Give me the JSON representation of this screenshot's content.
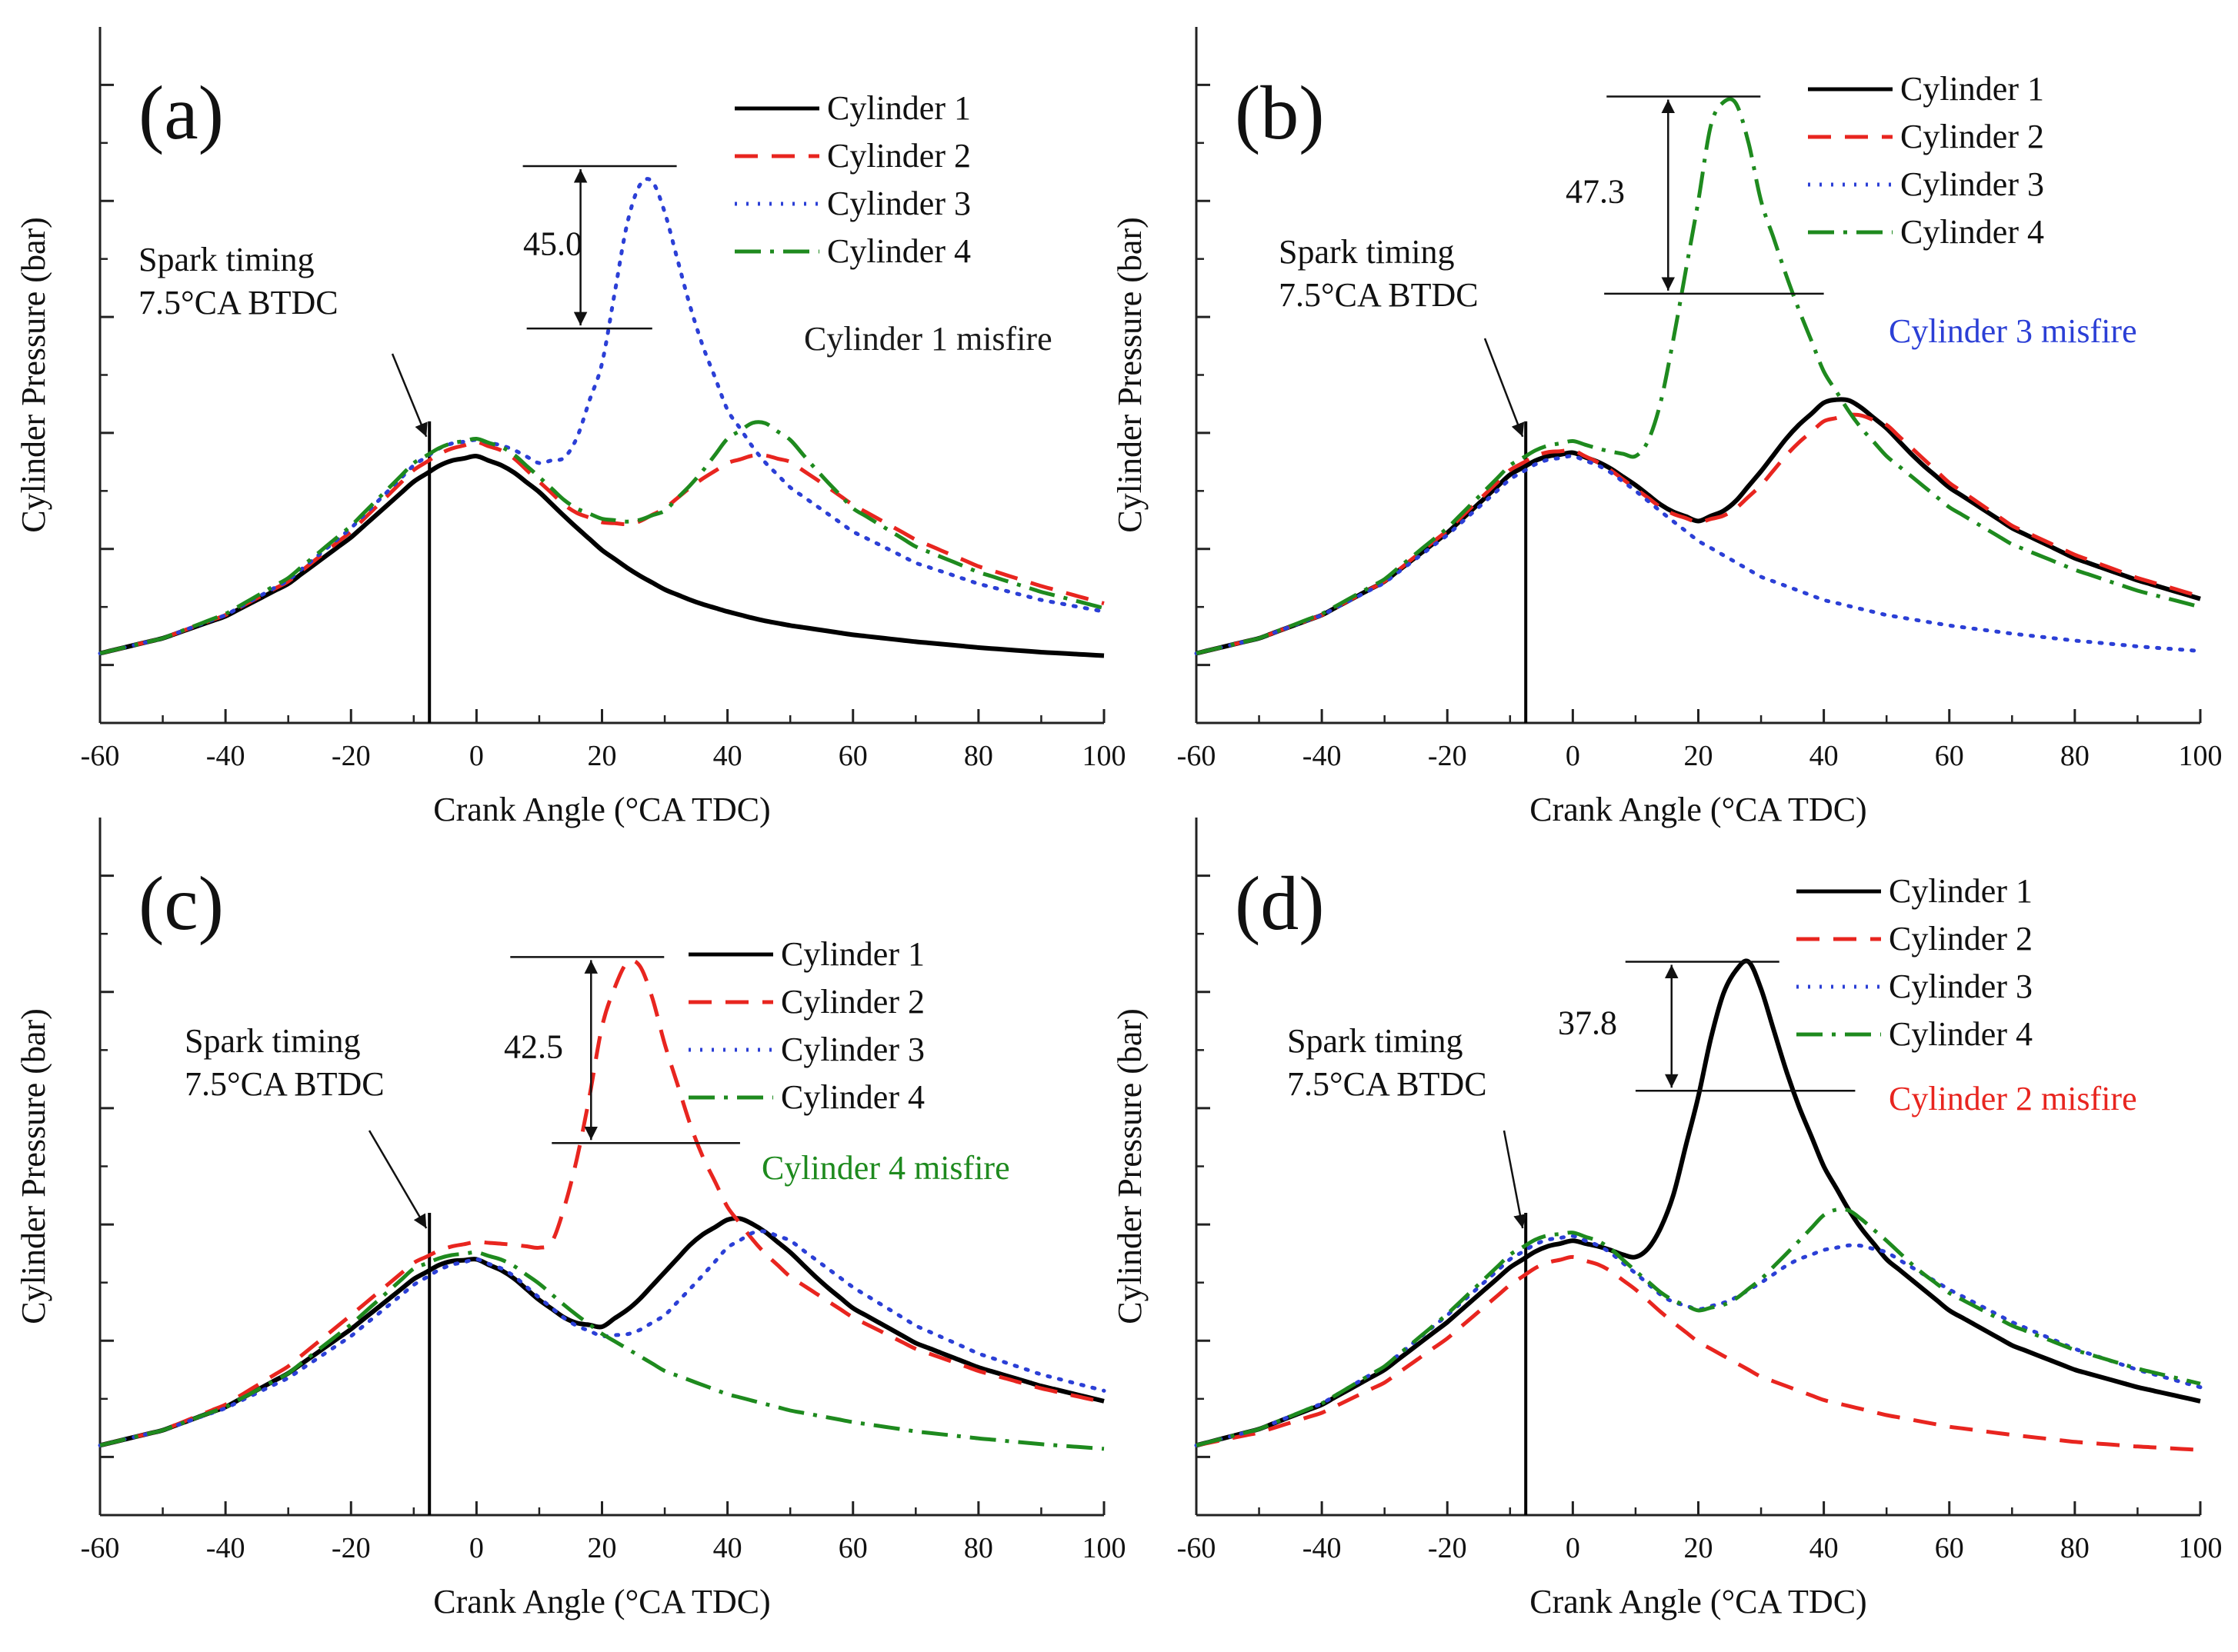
{
  "chart_data": [
    {
      "panel_label": "(a)",
      "type": "line",
      "xlabel": "Crank Angle (°CA TDC)",
      "ylabel": "Cylinder Pressure (bar)",
      "xlim": [
        -60,
        100
      ],
      "xticks": [
        "-60",
        "-40",
        "-20",
        "0",
        "20",
        "40",
        "60",
        "80",
        "100"
      ],
      "ylim": [
        -5,
        55
      ],
      "y_tick_labels_shown": false,
      "grid": false,
      "legend_position": "top-right",
      "spark_label": [
        "Spark timing",
        "7.5°CA BTDC"
      ],
      "spark_x": -7.5,
      "peak_difference": "45.0",
      "misfire_label": "Cylinder 1 misfire",
      "misfire_color": "#1a1a1a",
      "ref_x": [
        8,
        28
      ],
      "series": [
        {
          "name": "Cylinder 1",
          "color": "#000000",
          "style": "solid",
          "x": [
            -60,
            -50,
            -40,
            -30,
            -20,
            -10,
            -5,
            0,
            5,
            10,
            15,
            20,
            25,
            30,
            35,
            40,
            45,
            50,
            55,
            60,
            70,
            80,
            90,
            100
          ],
          "y": [
            1.0,
            2.3,
            4.2,
            7.0,
            11.0,
            15.8,
            17.5,
            18.0,
            17.0,
            14.9,
            12.3,
            9.9,
            8.0,
            6.5,
            5.4,
            4.6,
            3.9,
            3.4,
            3.0,
            2.6,
            2.0,
            1.5,
            1.1,
            0.8
          ]
        },
        {
          "name": "Cylinder 2",
          "color": "#e8251f",
          "style": "dashed",
          "x": [
            -60,
            -50,
            -40,
            -30,
            -20,
            -10,
            -5,
            0,
            5,
            10,
            15,
            20,
            25,
            30,
            35,
            40,
            45,
            50,
            55,
            60,
            70,
            80,
            90,
            100
          ],
          "y": [
            1.0,
            2.3,
            4.3,
            7.2,
            11.5,
            16.8,
            18.5,
            19.2,
            18.3,
            15.8,
            13.3,
            12.3,
            12.1,
            13.5,
            15.7,
            17.4,
            18.2,
            17.5,
            15.7,
            13.8,
            10.8,
            8.5,
            6.8,
            5.3
          ]
        },
        {
          "name": "Cylinder 3",
          "color": "#2b3fd6",
          "style": "dotted",
          "x": [
            -60,
            -50,
            -40,
            -30,
            -20,
            -10,
            -5,
            0,
            5,
            10,
            15,
            20,
            24,
            27,
            30,
            35,
            40,
            45,
            50,
            60,
            70,
            80,
            90,
            100
          ],
          "y": [
            1.0,
            2.3,
            4.3,
            7.3,
            11.8,
            17.2,
            19.0,
            19.4,
            18.8,
            17.4,
            18.0,
            26.0,
            38.0,
            43.0,
            39.0,
            29.0,
            22.0,
            18.0,
            15.3,
            11.5,
            8.8,
            7.0,
            5.6,
            4.6
          ]
        },
        {
          "name": "Cylinder 4",
          "color": "#1e8a1e",
          "style": "dashdot",
          "x": [
            -60,
            -50,
            -40,
            -30,
            -20,
            -10,
            -5,
            0,
            5,
            10,
            15,
            20,
            25,
            30,
            35,
            40,
            45,
            50,
            55,
            60,
            70,
            80,
            90,
            100
          ],
          "y": [
            1.0,
            2.3,
            4.4,
            7.5,
            12.0,
            17.4,
            19.0,
            19.5,
            18.6,
            16.2,
            13.7,
            12.6,
            12.3,
            13.3,
            16.0,
            19.5,
            21.2,
            19.4,
            16.3,
            13.5,
            10.2,
            8.0,
            6.3,
            4.9
          ]
        }
      ]
    },
    {
      "panel_label": "(b)",
      "type": "line",
      "xlabel": "Crank Angle (°CA TDC)",
      "ylabel": "Cylinder Pressure (bar)",
      "xlim": [
        -60,
        100
      ],
      "xticks": [
        "-60",
        "-40",
        "-20",
        "0",
        "20",
        "40",
        "60",
        "80",
        "100"
      ],
      "ylim": [
        -5,
        55
      ],
      "y_tick_labels_shown": false,
      "grid": false,
      "legend_position": "top-right",
      "spark_label": [
        "Spark timing",
        "7.5°CA BTDC"
      ],
      "spark_x": -7.5,
      "peak_difference": "47.3",
      "misfire_label": "Cylinder 3 misfire",
      "misfire_color": "#2b3fd6",
      "ref_x": [
        5,
        40
      ],
      "series": [
        {
          "name": "Cylinder 1",
          "color": "#000000",
          "style": "solid",
          "x": [
            -60,
            -50,
            -40,
            -30,
            -20,
            -10,
            -5,
            0,
            5,
            10,
            15,
            20,
            25,
            30,
            35,
            40,
            43,
            45,
            50,
            55,
            60,
            70,
            80,
            90,
            100
          ],
          "y": [
            1.0,
            2.3,
            4.3,
            7.2,
            11.4,
            16.4,
            17.9,
            18.3,
            17.3,
            15.5,
            13.4,
            12.4,
            13.5,
            16.7,
            20.2,
            22.6,
            23.0,
            22.6,
            20.4,
            17.6,
            15.3,
            11.8,
            9.2,
            7.3,
            5.7
          ]
        },
        {
          "name": "Cylinder 2",
          "color": "#e8251f",
          "style": "dashed",
          "x": [
            -60,
            -50,
            -40,
            -30,
            -20,
            -10,
            -5,
            0,
            5,
            10,
            15,
            20,
            25,
            30,
            35,
            40,
            45,
            50,
            55,
            60,
            70,
            80,
            90,
            100
          ],
          "y": [
            1.0,
            2.3,
            4.3,
            7.2,
            11.6,
            16.8,
            18.3,
            18.5,
            17.2,
            15.2,
            13.2,
            12.3,
            13.0,
            15.5,
            18.7,
            21.0,
            21.7,
            20.7,
            18.2,
            15.7,
            12.0,
            9.5,
            7.5,
            5.9
          ]
        },
        {
          "name": "Cylinder 3",
          "color": "#2b3fd6",
          "style": "dotted",
          "x": [
            -60,
            -50,
            -40,
            -30,
            -20,
            -10,
            -5,
            0,
            5,
            10,
            15,
            20,
            30,
            40,
            50,
            60,
            70,
            80,
            90,
            100
          ],
          "y": [
            1.0,
            2.3,
            4.3,
            7.1,
            11.2,
            16.0,
            17.6,
            18.0,
            17.0,
            15.0,
            12.8,
            10.7,
            7.6,
            5.6,
            4.3,
            3.4,
            2.7,
            2.1,
            1.6,
            1.2
          ]
        },
        {
          "name": "Cylinder 4",
          "color": "#1e8a1e",
          "style": "dashdot",
          "x": [
            -60,
            -50,
            -40,
            -30,
            -20,
            -10,
            -5,
            0,
            5,
            10,
            13,
            16,
            20,
            22,
            24,
            25,
            26,
            28,
            30,
            35,
            40,
            45,
            50,
            60,
            70,
            80,
            90,
            100
          ],
          "y": [
            1.0,
            2.3,
            4.4,
            7.4,
            11.8,
            17.2,
            18.8,
            19.3,
            18.5,
            18.0,
            20.0,
            28.0,
            40.0,
            46.5,
            48.5,
            49.0,
            48.4,
            45.0,
            40.0,
            32.0,
            25.3,
            21.0,
            18.0,
            13.6,
            10.4,
            8.2,
            6.4,
            5.0
          ]
        }
      ]
    },
    {
      "panel_label": "(c)",
      "type": "line",
      "xlabel": "Crank Angle (°CA TDC)",
      "ylabel": "Cylinder Pressure (bar)",
      "xlim": [
        -60,
        100
      ],
      "xticks": [
        "-60",
        "-40",
        "-20",
        "0",
        "20",
        "40",
        "60",
        "80",
        "100"
      ],
      "ylim": [
        -5,
        55
      ],
      "y_tick_labels_shown": false,
      "grid": false,
      "legend_position": "right",
      "spark_label": [
        "Spark timing",
        "7.5°CA BTDC"
      ],
      "spark_x": -7.5,
      "peak_difference": "42.5",
      "misfire_label": "Cylinder 4 misfire",
      "misfire_color": "#1e8a1e",
      "ref_x": [
        12,
        42
      ],
      "series": [
        {
          "name": "Cylinder 1",
          "color": "#000000",
          "style": "solid",
          "x": [
            -60,
            -50,
            -40,
            -30,
            -20,
            -10,
            -5,
            0,
            5,
            10,
            15,
            20,
            25,
            30,
            35,
            40,
            42,
            45,
            50,
            55,
            60,
            70,
            80,
            90,
            100
          ],
          "y": [
            1.0,
            2.3,
            4.3,
            7.2,
            11.0,
            15.3,
            16.8,
            17.0,
            15.8,
            13.5,
            11.6,
            11.2,
            13.0,
            15.9,
            18.8,
            20.4,
            20.5,
            19.8,
            17.6,
            15.0,
            12.8,
            9.8,
            7.7,
            6.1,
            4.8
          ]
        },
        {
          "name": "Cylinder 2",
          "color": "#e8251f",
          "style": "dashed",
          "x": [
            -60,
            -50,
            -40,
            -30,
            -20,
            -10,
            -5,
            0,
            5,
            10,
            12,
            15,
            18,
            20,
            23,
            25,
            27,
            30,
            35,
            40,
            45,
            50,
            60,
            70,
            80,
            90,
            100
          ],
          "y": [
            1.0,
            2.3,
            4.5,
            7.8,
            12.2,
            16.7,
            18.0,
            18.5,
            18.3,
            18.0,
            18.5,
            23.0,
            31.0,
            37.0,
            42.0,
            43.0,
            41.5,
            35.5,
            27.0,
            21.5,
            18.0,
            15.5,
            12.0,
            9.3,
            7.4,
            5.9,
            4.7
          ]
        },
        {
          "name": "Cylinder 3",
          "color": "#2b3fd6",
          "style": "dotted",
          "x": [
            -60,
            -50,
            -40,
            -30,
            -20,
            -10,
            -5,
            0,
            5,
            10,
            15,
            20,
            25,
            30,
            35,
            40,
            45,
            50,
            60,
            70,
            80,
            90,
            100
          ],
          "y": [
            1.0,
            2.3,
            4.2,
            6.8,
            10.4,
            14.8,
            16.4,
            17.0,
            16.0,
            13.7,
            11.5,
            10.4,
            10.6,
            12.2,
            15.0,
            18.0,
            19.6,
            18.6,
            14.6,
            11.3,
            8.9,
            7.1,
            5.7
          ]
        },
        {
          "name": "Cylinder 4",
          "color": "#1e8a1e",
          "style": "dashdot",
          "x": [
            -60,
            -50,
            -40,
            -30,
            -20,
            -10,
            -5,
            0,
            5,
            10,
            15,
            20,
            30,
            40,
            50,
            60,
            70,
            80,
            90,
            100
          ],
          "y": [
            1.0,
            2.3,
            4.3,
            7.2,
            11.4,
            16.2,
            17.3,
            17.6,
            16.8,
            14.9,
            12.6,
            10.6,
            7.4,
            5.4,
            4.0,
            3.0,
            2.2,
            1.6,
            1.1,
            0.7
          ]
        }
      ]
    },
    {
      "panel_label": "(d)",
      "type": "line",
      "xlabel": "Crank Angle (°CA TDC)",
      "ylabel": "Cylinder Pressure (bar)",
      "xlim": [
        -60,
        100
      ],
      "xticks": [
        "-60",
        "-40",
        "-20",
        "0",
        "20",
        "40",
        "60",
        "80",
        "100"
      ],
      "ylim": [
        -5,
        55
      ],
      "y_tick_labels_shown": false,
      "grid": false,
      "legend_position": "top-right",
      "spark_label": [
        "Spark timing",
        "7.5°CA BTDC"
      ],
      "spark_x": -7.5,
      "peak_difference": "37.8",
      "misfire_label": "Cylinder 2 misfire",
      "misfire_color": "#e8251f",
      "ref_x": [
        10,
        45
      ],
      "series": [
        {
          "name": "Cylinder 1",
          "color": "#000000",
          "style": "solid",
          "x": [
            -60,
            -50,
            -40,
            -30,
            -20,
            -10,
            -5,
            0,
            5,
            8,
            10,
            13,
            16,
            20,
            23,
            25,
            27,
            28,
            29,
            31,
            35,
            40,
            45,
            50,
            60,
            70,
            80,
            90,
            100
          ],
          "y": [
            1.0,
            2.4,
            4.5,
            7.5,
            11.6,
            16.3,
            18.0,
            18.6,
            18.0,
            17.4,
            17.2,
            18.3,
            22.5,
            31.0,
            38.5,
            41.2,
            42.5,
            42.6,
            42.0,
            38.5,
            31.5,
            25.0,
            20.3,
            17.0,
            12.6,
            9.6,
            7.5,
            6.0,
            4.8
          ]
        },
        {
          "name": "Cylinder 2",
          "color": "#e8251f",
          "style": "dashed",
          "x": [
            -60,
            -50,
            -40,
            -30,
            -20,
            -10,
            -5,
            0,
            5,
            10,
            15,
            20,
            30,
            40,
            50,
            60,
            70,
            80,
            90,
            100
          ],
          "y": [
            1.0,
            2.1,
            3.8,
            6.4,
            10.2,
            14.8,
            16.6,
            17.2,
            16.4,
            14.4,
            12.0,
            9.9,
            6.9,
            4.9,
            3.6,
            2.6,
            1.9,
            1.3,
            0.9,
            0.6
          ]
        },
        {
          "name": "Cylinder 3",
          "color": "#2b3fd6",
          "style": "dotted",
          "x": [
            -60,
            -50,
            -40,
            -30,
            -20,
            -10,
            -5,
            0,
            5,
            10,
            15,
            20,
            25,
            30,
            35,
            40,
            45,
            50,
            60,
            70,
            80,
            90,
            100
          ],
          "y": [
            1.0,
            2.4,
            4.6,
            7.8,
            12.2,
            17.0,
            18.6,
            19.0,
            18.0,
            15.8,
            13.5,
            12.7,
            13.4,
            15.0,
            16.8,
            17.8,
            18.3,
            17.6,
            14.4,
            11.6,
            9.3,
            7.5,
            6.0
          ]
        },
        {
          "name": "Cylinder 4",
          "color": "#1e8a1e",
          "style": "dashdot",
          "x": [
            -60,
            -50,
            -40,
            -30,
            -20,
            -10,
            -5,
            0,
            5,
            10,
            15,
            20,
            25,
            30,
            35,
            40,
            43,
            45,
            50,
            55,
            60,
            70,
            80,
            90,
            100
          ],
          "y": [
            1.0,
            2.4,
            4.6,
            7.8,
            12.3,
            17.4,
            19.0,
            19.3,
            18.4,
            16.0,
            13.7,
            12.6,
            13.2,
            15.3,
            18.0,
            20.8,
            21.5,
            20.9,
            18.6,
            16.1,
            14.1,
            11.3,
            9.2,
            7.6,
            6.3
          ]
        }
      ]
    }
  ],
  "legend": {
    "entries": [
      "Cylinder 1",
      "Cylinder 2",
      "Cylinder 3",
      "Cylinder 4"
    ]
  }
}
